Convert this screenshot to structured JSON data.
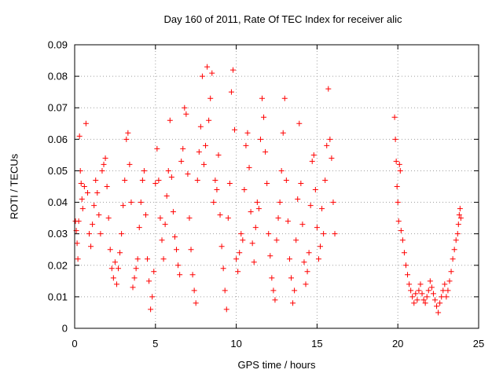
{
  "chart_data": {
    "type": "scatter",
    "title": "Day 160 of 2011, Rate Of TEC Index for receiver alic",
    "xlabel": "GPS time / hours",
    "ylabel": "ROTI / TECUs",
    "xlim": [
      0,
      25
    ],
    "ylim": [
      0,
      0.09
    ],
    "xticks": [
      "0",
      "5",
      "10",
      "15",
      "20",
      "25"
    ],
    "yticks": [
      "0",
      "0.01",
      "0.02",
      "0.03",
      "0.04",
      "0.05",
      "0.06",
      "0.07",
      "0.08",
      "0.09"
    ],
    "grid": true,
    "marker": "+",
    "color": "#ff0000",
    "series": [
      {
        "points": [
          [
            0.05,
            0.034
          ],
          [
            0.1,
            0.031
          ],
          [
            0.15,
            0.027
          ],
          [
            0.2,
            0.022
          ],
          [
            0.25,
            0.034
          ],
          [
            0.3,
            0.061
          ],
          [
            0.35,
            0.05
          ],
          [
            0.4,
            0.046
          ],
          [
            0.45,
            0.041
          ],
          [
            0.5,
            0.038
          ],
          [
            0.6,
            0.045
          ],
          [
            0.7,
            0.065
          ],
          [
            0.8,
            0.043
          ],
          [
            0.9,
            0.03
          ],
          [
            1.0,
            0.026
          ],
          [
            1.1,
            0.033
          ],
          [
            1.2,
            0.039
          ],
          [
            1.3,
            0.047
          ],
          [
            1.4,
            0.043
          ],
          [
            1.5,
            0.036
          ],
          [
            1.6,
            0.03
          ],
          [
            1.7,
            0.05
          ],
          [
            1.8,
            0.052
          ],
          [
            1.9,
            0.054
          ],
          [
            2.0,
            0.045
          ],
          [
            2.1,
            0.035
          ],
          [
            2.2,
            0.025
          ],
          [
            2.3,
            0.019
          ],
          [
            2.4,
            0.016
          ],
          [
            2.5,
            0.021
          ],
          [
            2.6,
            0.014
          ],
          [
            2.7,
            0.019
          ],
          [
            2.8,
            0.024
          ],
          [
            2.9,
            0.03
          ],
          [
            3.0,
            0.039
          ],
          [
            3.1,
            0.047
          ],
          [
            3.2,
            0.06
          ],
          [
            3.3,
            0.062
          ],
          [
            3.4,
            0.052
          ],
          [
            3.5,
            0.04
          ],
          [
            3.6,
            0.013
          ],
          [
            3.7,
            0.016
          ],
          [
            3.8,
            0.019
          ],
          [
            3.9,
            0.022
          ],
          [
            4.0,
            0.032
          ],
          [
            4.1,
            0.04
          ],
          [
            4.2,
            0.047
          ],
          [
            4.3,
            0.05
          ],
          [
            4.4,
            0.036
          ],
          [
            4.5,
            0.022
          ],
          [
            4.6,
            0.015
          ],
          [
            4.7,
            0.006
          ],
          [
            4.8,
            0.01
          ],
          [
            4.9,
            0.018
          ],
          [
            5.0,
            0.046
          ],
          [
            5.1,
            0.057
          ],
          [
            5.2,
            0.047
          ],
          [
            5.3,
            0.035
          ],
          [
            5.4,
            0.028
          ],
          [
            5.5,
            0.022
          ],
          [
            5.6,
            0.033
          ],
          [
            5.7,
            0.042
          ],
          [
            5.8,
            0.05
          ],
          [
            5.9,
            0.066
          ],
          [
            6.0,
            0.048
          ],
          [
            6.1,
            0.037
          ],
          [
            6.2,
            0.029
          ],
          [
            6.3,
            0.025
          ],
          [
            6.4,
            0.02
          ],
          [
            6.5,
            0.017
          ],
          [
            6.6,
            0.053
          ],
          [
            6.7,
            0.057
          ],
          [
            6.8,
            0.07
          ],
          [
            6.9,
            0.068
          ],
          [
            7.0,
            0.049
          ],
          [
            7.1,
            0.035
          ],
          [
            7.2,
            0.025
          ],
          [
            7.3,
            0.017
          ],
          [
            7.4,
            0.012
          ],
          [
            7.5,
            0.008
          ],
          [
            7.6,
            0.047
          ],
          [
            7.7,
            0.056
          ],
          [
            7.8,
            0.064
          ],
          [
            7.9,
            0.08
          ],
          [
            8.0,
            0.052
          ],
          [
            8.1,
            0.058
          ],
          [
            8.2,
            0.083
          ],
          [
            8.3,
            0.066
          ],
          [
            8.4,
            0.073
          ],
          [
            8.5,
            0.081
          ],
          [
            8.6,
            0.04
          ],
          [
            8.7,
            0.047
          ],
          [
            8.8,
            0.044
          ],
          [
            8.9,
            0.055
          ],
          [
            9.0,
            0.036
          ],
          [
            9.1,
            0.026
          ],
          [
            9.2,
            0.019
          ],
          [
            9.3,
            0.012
          ],
          [
            9.4,
            0.006
          ],
          [
            9.5,
            0.035
          ],
          [
            9.6,
            0.046
          ],
          [
            9.7,
            0.075
          ],
          [
            9.8,
            0.082
          ],
          [
            9.9,
            0.063
          ],
          [
            10.0,
            0.022
          ],
          [
            10.1,
            0.018
          ],
          [
            10.2,
            0.024
          ],
          [
            10.3,
            0.03
          ],
          [
            10.4,
            0.028
          ],
          [
            10.5,
            0.044
          ],
          [
            10.6,
            0.058
          ],
          [
            10.7,
            0.062
          ],
          [
            10.8,
            0.051
          ],
          [
            10.9,
            0.037
          ],
          [
            11.0,
            0.027
          ],
          [
            11.1,
            0.021
          ],
          [
            11.2,
            0.032
          ],
          [
            11.3,
            0.04
          ],
          [
            11.4,
            0.038
          ],
          [
            11.5,
            0.06
          ],
          [
            11.6,
            0.073
          ],
          [
            11.7,
            0.067
          ],
          [
            11.8,
            0.056
          ],
          [
            11.9,
            0.046
          ],
          [
            12.0,
            0.03
          ],
          [
            12.1,
            0.023
          ],
          [
            12.2,
            0.016
          ],
          [
            12.3,
            0.012
          ],
          [
            12.4,
            0.009
          ],
          [
            12.5,
            0.028
          ],
          [
            12.6,
            0.035
          ],
          [
            12.7,
            0.04
          ],
          [
            12.8,
            0.05
          ],
          [
            12.9,
            0.062
          ],
          [
            13.0,
            0.073
          ],
          [
            13.1,
            0.047
          ],
          [
            13.2,
            0.034
          ],
          [
            13.3,
            0.022
          ],
          [
            13.4,
            0.016
          ],
          [
            13.5,
            0.008
          ],
          [
            13.6,
            0.012
          ],
          [
            13.7,
            0.028
          ],
          [
            13.8,
            0.041
          ],
          [
            13.9,
            0.065
          ],
          [
            14.0,
            0.046
          ],
          [
            14.1,
            0.033
          ],
          [
            14.2,
            0.021
          ],
          [
            14.3,
            0.014
          ],
          [
            14.4,
            0.018
          ],
          [
            14.5,
            0.024
          ],
          [
            14.6,
            0.039
          ],
          [
            14.7,
            0.053
          ],
          [
            14.8,
            0.055
          ],
          [
            14.9,
            0.044
          ],
          [
            15.0,
            0.032
          ],
          [
            15.1,
            0.022
          ],
          [
            15.2,
            0.026
          ],
          [
            15.3,
            0.038
          ],
          [
            15.4,
            0.03
          ],
          [
            15.5,
            0.047
          ],
          [
            15.6,
            0.058
          ],
          [
            15.7,
            0.076
          ],
          [
            15.8,
            0.06
          ],
          [
            15.9,
            0.054
          ],
          [
            16.0,
            0.04
          ],
          [
            16.1,
            0.03
          ],
          [
            19.8,
            0.067
          ],
          [
            19.85,
            0.06
          ],
          [
            19.9,
            0.053
          ],
          [
            19.95,
            0.045
          ],
          [
            20.0,
            0.04
          ],
          [
            20.05,
            0.034
          ],
          [
            20.1,
            0.052
          ],
          [
            20.15,
            0.05
          ],
          [
            20.2,
            0.031
          ],
          [
            20.3,
            0.028
          ],
          [
            20.4,
            0.024
          ],
          [
            20.5,
            0.02
          ],
          [
            20.6,
            0.017
          ],
          [
            20.7,
            0.014
          ],
          [
            20.8,
            0.012
          ],
          [
            20.9,
            0.01
          ],
          [
            21.0,
            0.008
          ],
          [
            21.1,
            0.011
          ],
          [
            21.2,
            0.009
          ],
          [
            21.3,
            0.012
          ],
          [
            21.4,
            0.014
          ],
          [
            21.5,
            0.011
          ],
          [
            21.6,
            0.009
          ],
          [
            21.7,
            0.008
          ],
          [
            21.8,
            0.01
          ],
          [
            21.9,
            0.012
          ],
          [
            22.0,
            0.015
          ],
          [
            22.1,
            0.013
          ],
          [
            22.2,
            0.011
          ],
          [
            22.3,
            0.009
          ],
          [
            22.4,
            0.007
          ],
          [
            22.5,
            0.005
          ],
          [
            22.6,
            0.008
          ],
          [
            22.7,
            0.01
          ],
          [
            22.8,
            0.012
          ],
          [
            22.9,
            0.014
          ],
          [
            23.0,
            0.01
          ],
          [
            23.1,
            0.012
          ],
          [
            23.2,
            0.015
          ],
          [
            23.3,
            0.018
          ],
          [
            23.4,
            0.022
          ],
          [
            23.5,
            0.025
          ],
          [
            23.6,
            0.028
          ],
          [
            23.7,
            0.03
          ],
          [
            23.75,
            0.033
          ],
          [
            23.8,
            0.036
          ],
          [
            23.85,
            0.038
          ],
          [
            23.9,
            0.035
          ]
        ]
      }
    ]
  }
}
